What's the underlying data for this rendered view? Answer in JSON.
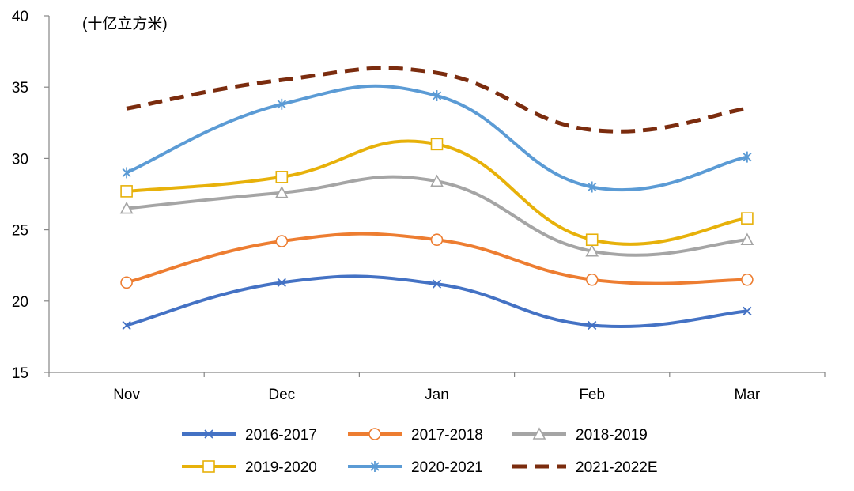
{
  "chart_data": {
    "type": "line",
    "title": "",
    "unit_label": "(十亿立方米)",
    "xlabel": "",
    "ylabel": "",
    "categories": [
      "Nov",
      "Dec",
      "Jan",
      "Feb",
      "Mar"
    ],
    "ylim": [
      15,
      40
    ],
    "yticks": [
      15,
      20,
      25,
      30,
      35,
      40
    ],
    "grid": false,
    "legend_position": "bottom",
    "series": [
      {
        "name": "2016-2017",
        "values": [
          18.3,
          21.3,
          21.2,
          18.3,
          19.3
        ],
        "color": "#4472C4",
        "marker": "x",
        "dashed": false
      },
      {
        "name": "2017-2018",
        "values": [
          21.3,
          24.2,
          24.3,
          21.5,
          21.5
        ],
        "color": "#ED7D31",
        "marker": "circle",
        "dashed": false
      },
      {
        "name": "2018-2019",
        "values": [
          26.5,
          27.6,
          28.4,
          23.5,
          24.3
        ],
        "color": "#A5A5A5",
        "marker": "triangle",
        "dashed": false
      },
      {
        "name": "2019-2020",
        "values": [
          27.7,
          28.7,
          31.0,
          24.3,
          25.8
        ],
        "color": "#E7B10A",
        "marker": "square",
        "dashed": false
      },
      {
        "name": "2020-2021",
        "values": [
          29.0,
          33.8,
          34.4,
          28.0,
          30.1
        ],
        "color": "#5B9BD5",
        "marker": "star",
        "dashed": false
      },
      {
        "name": "2021-2022E",
        "values": [
          33.5,
          35.5,
          36.0,
          32.0,
          33.5
        ],
        "color": "#7B2C0E",
        "marker": "none",
        "dashed": true
      }
    ]
  }
}
